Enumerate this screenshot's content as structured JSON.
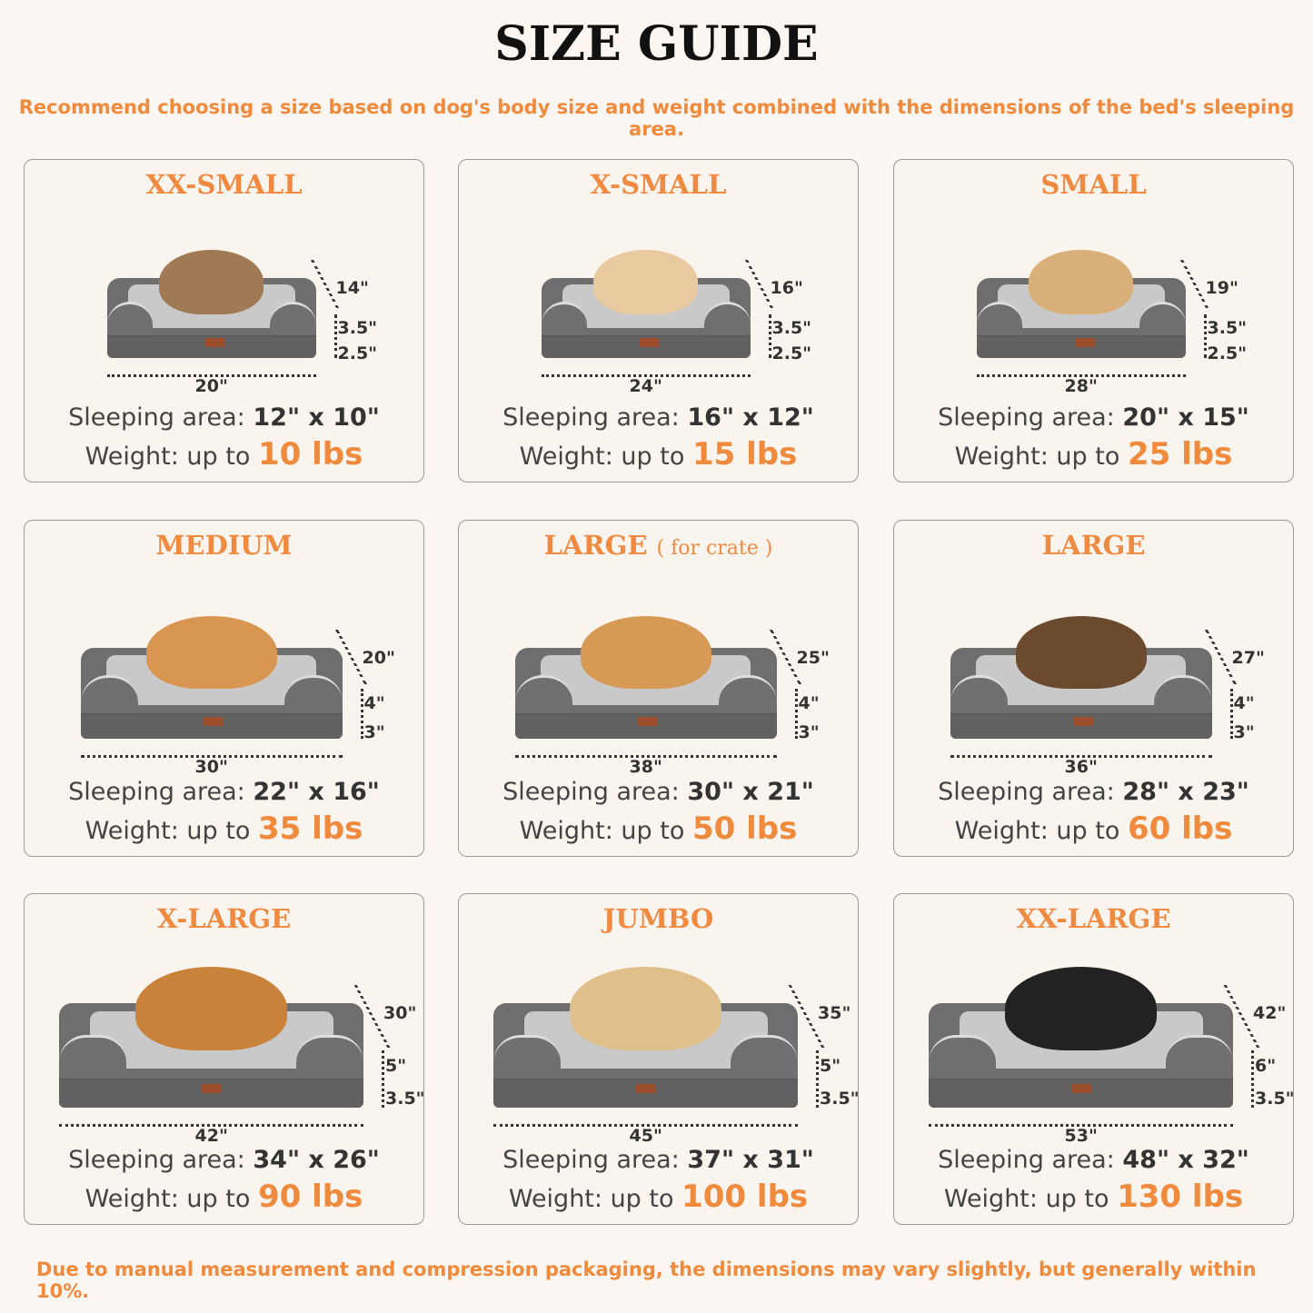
{
  "title": "SIZE GUIDE",
  "subtitle": "Recommend choosing a size based on dog's body size and weight combined with the dimensions of the bed's sleeping area.",
  "footer": "Due to manual measurement and compression packaging, the dimensions may vary slightly, but generally within 10%.",
  "colors": {
    "accent": "#f08a3c",
    "bed": "#6e6e6e",
    "background": "#fbf6f1"
  },
  "sleeping_label": "Sleeping area:",
  "weight_label": "Weight: up to",
  "cards": [
    {
      "title": "XX-SMALL",
      "note": "",
      "depth": "14\"",
      "h1": "3.5\"",
      "h2": "2.5\"",
      "width": "20\"",
      "sleeping": "12\" x 10\"",
      "weight": "10 lbs",
      "pet": "cat"
    },
    {
      "title": "X-SMALL",
      "note": "",
      "depth": "16\"",
      "h1": "3.5\"",
      "h2": "2.5\"",
      "width": "24\"",
      "sleeping": "16\" x 12\"",
      "weight": "15 lbs",
      "pet": "dog"
    },
    {
      "title": "SMALL",
      "note": "",
      "depth": "19\"",
      "h1": "3.5\"",
      "h2": "2.5\"",
      "width": "28\"",
      "sleeping": "20\" x 15\"",
      "weight": "25 lbs",
      "pet": "dog"
    },
    {
      "title": "MEDIUM",
      "note": "",
      "depth": "20\"",
      "h1": "4\"",
      "h2": "3\"",
      "width": "30\"",
      "sleeping": "22\" x 16\"",
      "weight": "35 lbs",
      "pet": "dog"
    },
    {
      "title": "LARGE",
      "note": "( for crate )",
      "depth": "25\"",
      "h1": "4\"",
      "h2": "3\"",
      "width": "38\"",
      "sleeping": "30\" x 21\"",
      "weight": "50 lbs",
      "pet": "dog"
    },
    {
      "title": "LARGE",
      "note": "",
      "depth": "27\"",
      "h1": "4\"",
      "h2": "3\"",
      "width": "36\"",
      "sleeping": "28\" x 23\"",
      "weight": "60 lbs",
      "pet": "dog"
    },
    {
      "title": "X-LARGE",
      "note": "",
      "depth": "30\"",
      "h1": "5\"",
      "h2": "3.5\"",
      "width": "42\"",
      "sleeping": "34\" x 26\"",
      "weight": "90 lbs",
      "pet": "dog"
    },
    {
      "title": "JUMBO",
      "note": "",
      "depth": "35\"",
      "h1": "5\"",
      "h2": "3.5\"",
      "width": "45\"",
      "sleeping": "37\" x 31\"",
      "weight": "100 lbs",
      "pet": "dog"
    },
    {
      "title": "XX-LARGE",
      "note": "",
      "depth": "42\"",
      "h1": "6\"",
      "h2": "3.5\"",
      "width": "53\"",
      "sleeping": "48\" x 32\"",
      "weight": "130 lbs",
      "pet": "dog"
    }
  ]
}
